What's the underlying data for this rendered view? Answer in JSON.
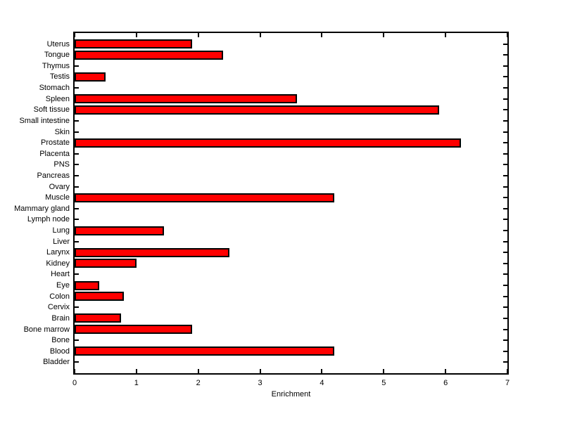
{
  "figure": {
    "background_color": "#ffffff",
    "axis_color": "#000000"
  },
  "chart_data": {
    "type": "bar",
    "orientation": "horizontal",
    "title": "",
    "xlabel": "Enrichment",
    "ylabel": "",
    "categories_top_to_bottom": [
      "Uterus",
      "Tongue",
      "Thymus",
      "Testis",
      "Stomach",
      "Spleen",
      "Soft tissue",
      "Small intestine",
      "Skin",
      "Prostate",
      "Placenta",
      "PNS",
      "Pancreas",
      "Ovary",
      "Muscle",
      "Mammary gland",
      "Lymph node",
      "Lung",
      "Liver",
      "Larynx",
      "Kidney",
      "Heart",
      "Eye",
      "Colon",
      "Cervix",
      "Brain",
      "Bone marrow",
      "Bone",
      "Blood",
      "Bladder"
    ],
    "values": [
      1.9,
      2.4,
      0,
      0.5,
      0,
      3.6,
      5.9,
      0,
      0,
      6.25,
      0,
      0,
      0,
      0,
      4.2,
      0,
      0,
      1.45,
      0,
      2.5,
      1.0,
      0,
      0.4,
      0.8,
      0,
      0.75,
      1.9,
      0,
      4.2,
      0
    ],
    "xlim": [
      0,
      7
    ],
    "xticks": [
      0,
      1,
      2,
      3,
      4,
      5,
      6,
      7
    ],
    "grid": false,
    "legend": null,
    "bar_color": "#ff0000",
    "bar_edge_color": "#000000",
    "tick_direction": "in",
    "box": true
  }
}
